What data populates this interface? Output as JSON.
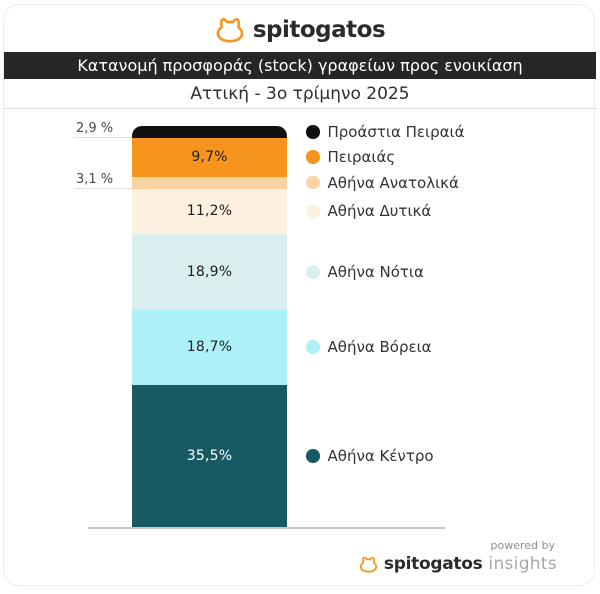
{
  "header": {
    "brand": "spitogatos"
  },
  "title_bar": {
    "text": "Κατανομή προσφοράς (stock) γραφείων προς ενοικίαση"
  },
  "subtitle": {
    "text": "Αττική - 3ο τρίμηνο 2025"
  },
  "chart_data": {
    "type": "bar",
    "stacked": true,
    "orientation": "vertical",
    "unit": "%",
    "title": "Κατανομή προσφοράς (stock) γραφείων προς ενοικίαση",
    "subtitle": "Αττική - 3ο τρίμηνο 2025",
    "legend_position": "right",
    "grid": false,
    "categories": [
      "Προάστια Πειραιά",
      "Πειραιάς",
      "Αθήνα Ανατολικά",
      "Αθήνα Δυτικά",
      "Αθήνα Νότια",
      "Αθήνα Βόρεια",
      "Αθήνα Κέντρο"
    ],
    "values": [
      2.9,
      9.7,
      3.1,
      11.2,
      18.9,
      18.7,
      35.5
    ],
    "segments": [
      {
        "name": "Προάστια Πειραιά",
        "value": 2.9,
        "label": "2,9 %",
        "color": "#111111",
        "label_style": "outside",
        "text_color": "#4a4a4a"
      },
      {
        "name": "Πειραιάς",
        "value": 9.7,
        "label": "9,7%",
        "color": "#F7941D",
        "label_style": "inside",
        "text_color": "#1e1e1e"
      },
      {
        "name": "Αθήνα Ανατολικά",
        "value": 3.1,
        "label": "3,1 %",
        "color": "#FAD3A2",
        "label_style": "outside",
        "text_color": "#4a4a4a"
      },
      {
        "name": "Αθήνα Δυτικά",
        "value": 11.2,
        "label": "11,2%",
        "color": "#FCF0E1",
        "label_style": "inside",
        "text_color": "#1e1e1e"
      },
      {
        "name": "Αθήνα Νότια",
        "value": 18.9,
        "label": "18,9%",
        "color": "#DAEEF0",
        "label_style": "inside",
        "text_color": "#1e1e1e"
      },
      {
        "name": "Αθήνα Βόρεια",
        "value": 18.7,
        "label": "18,7%",
        "color": "#ADF1F8",
        "label_style": "inside",
        "text_color": "#1e1e1e"
      },
      {
        "name": "Αθήνα Κέντρο",
        "value": 35.5,
        "label": "35,5%",
        "color": "#175A63",
        "label_style": "inside",
        "text_color": "#ffffff"
      }
    ]
  },
  "footer": {
    "powered_by": "powered by",
    "brand": "spitogatos",
    "suffix": "insights"
  },
  "colors": {
    "brand_orange": "#F7941D",
    "title_bar_bg": "#262626"
  }
}
